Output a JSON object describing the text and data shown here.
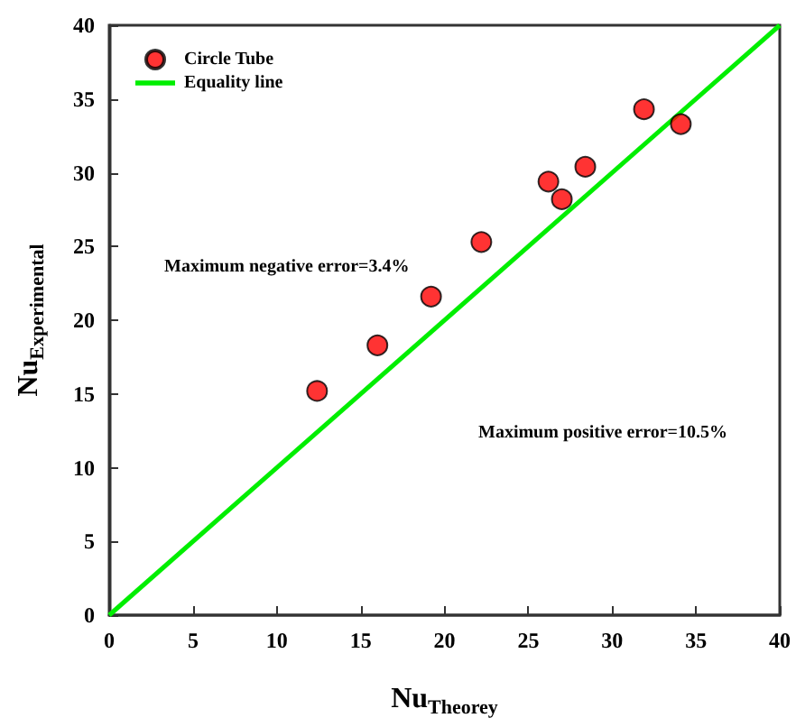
{
  "chart_data": {
    "type": "scatter",
    "xlabel": "Nu$_{Theorey}$",
    "ylabel": "Nu$_{Experimental}$",
    "annotations": [
      "Maximum negative error=3.4%",
      "Maximum positive error=10.5%"
    ],
    "x": [
      12.4,
      16.0,
      19.2,
      22.2,
      26.2,
      27.0,
      28.4,
      31.9,
      34.1
    ],
    "series": [
      {
        "name": "Circle Tube",
        "color": "#ff0000",
        "marker": "circle",
        "values": [
          15.2,
          18.3,
          21.6,
          25.3,
          29.4,
          28.2,
          30.4,
          34.3,
          33.3
        ]
      },
      {
        "name": "Equality line",
        "type": "line",
        "color": "#00ee00",
        "marker": "none",
        "x": [
          0,
          40
        ],
        "values": [
          0,
          40
        ]
      }
    ],
    "xlim": [
      0,
      40
    ],
    "ylim": [
      0,
      40
    ],
    "xticks": [
      0,
      5,
      10,
      15,
      20,
      25,
      30,
      35,
      40
    ],
    "yticks": [
      0,
      5,
      10,
      15,
      20,
      25,
      30,
      35,
      40
    ],
    "grid": false,
    "legend": "top left"
  }
}
